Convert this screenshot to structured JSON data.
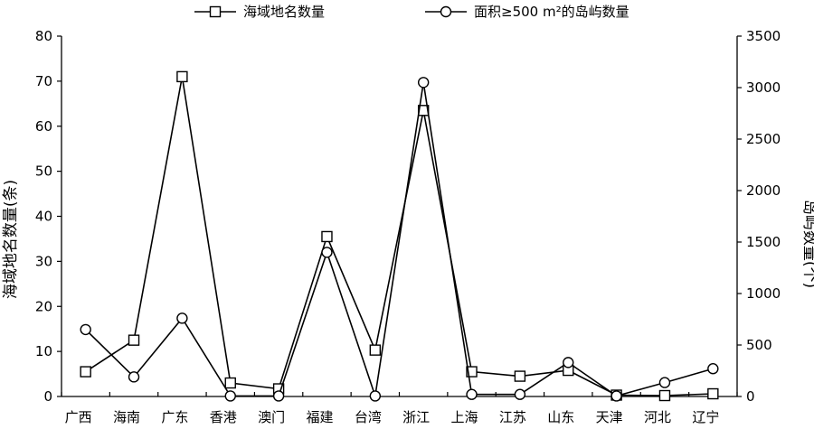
{
  "chart_data": {
    "type": "line",
    "categories": [
      "广西",
      "海南",
      "广东",
      "香港",
      "澳门",
      "福建",
      "台湾",
      "浙江",
      "上海",
      "江苏",
      "山东",
      "天津",
      "河北",
      "辽宁"
    ],
    "series": [
      {
        "name": "海域地名数量",
        "marker": "square",
        "axis": "left",
        "values": [
          5.5,
          12.5,
          71,
          3,
          1.7,
          35.5,
          10.3,
          63.5,
          5.5,
          4.5,
          5.8,
          0.3,
          0.2,
          0.6
        ]
      },
      {
        "name": "面积≥500 m²的岛屿数量",
        "marker": "circle",
        "axis": "right",
        "values": [
          650,
          190,
          760,
          5,
          5,
          1400,
          5,
          3050,
          20,
          20,
          330,
          5,
          135,
          270
        ]
      }
    ],
    "ylabel": "海域地名数量(条)",
    "y2label": "岛屿数量(个)",
    "ylim": [
      0,
      80
    ],
    "y2lim": [
      0,
      3500
    ],
    "yticks": [
      "0",
      "10",
      "20",
      "30",
      "40",
      "50",
      "60",
      "70",
      "80"
    ],
    "y2ticks": [
      "0",
      "500",
      "1000",
      "1500",
      "2000",
      "2500",
      "3000",
      "3500"
    ],
    "grid": false,
    "legend": "top",
    "colors": {
      "line": "#000000",
      "marker_fill": "#ffffff"
    }
  }
}
